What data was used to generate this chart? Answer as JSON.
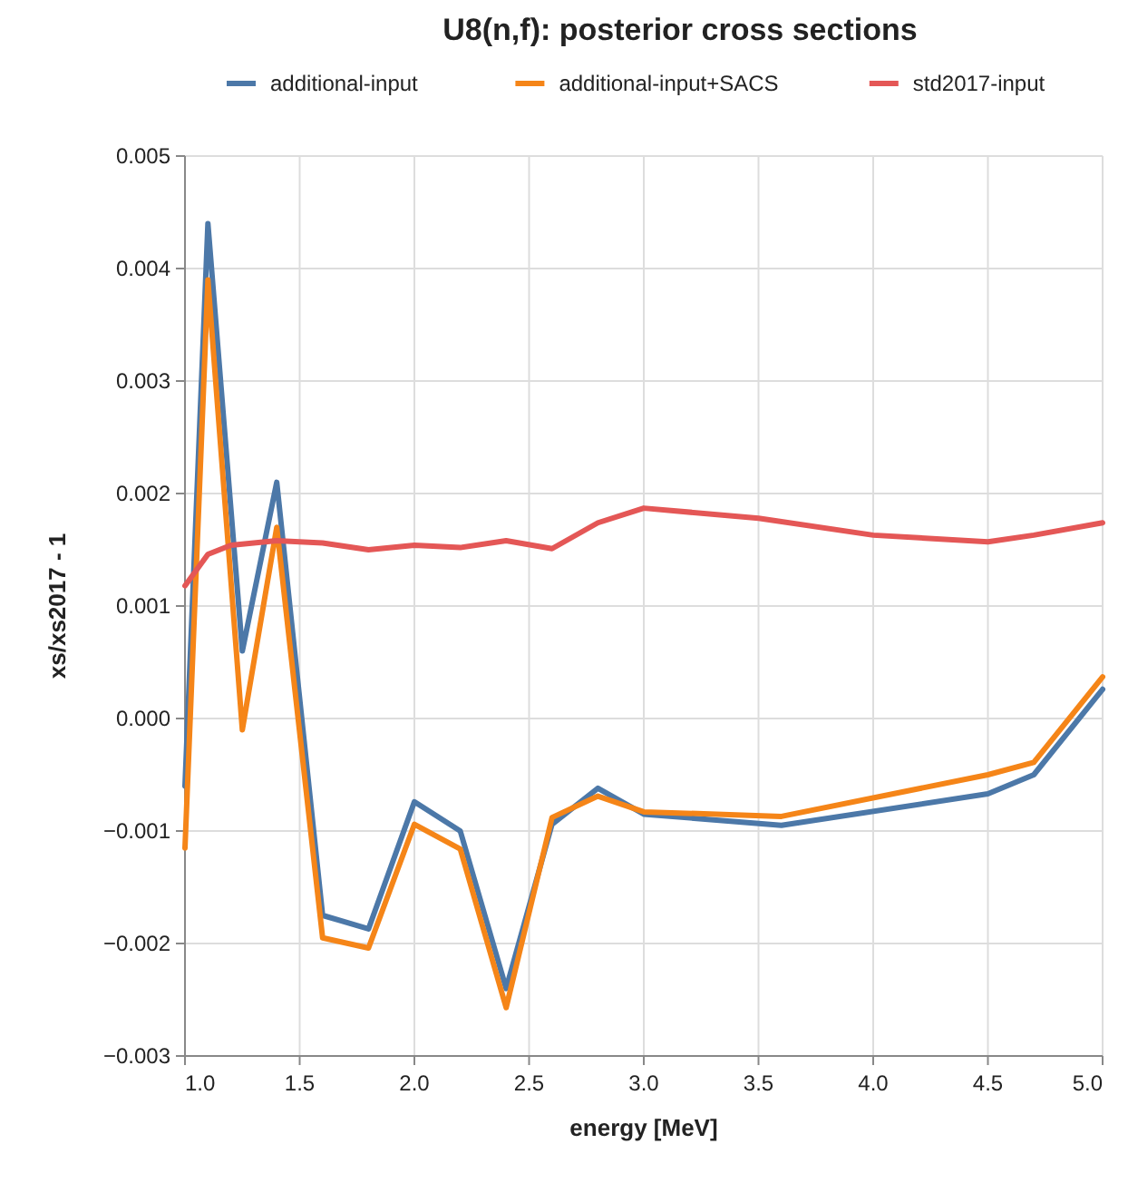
{
  "chart_data": {
    "type": "line",
    "title": "U8(n,f): posterior cross sections",
    "xlabel": "energy [MeV]",
    "ylabel": "xs/xs2017 - 1",
    "xlim": [
      1,
      5
    ],
    "ylim": [
      -0.003,
      0.005
    ],
    "xticks": [
      {
        "value": 1,
        "label": "1.0"
      },
      {
        "value": 1.5,
        "label": "1.5"
      },
      {
        "value": 2,
        "label": "2.0"
      },
      {
        "value": 2.5,
        "label": "2.5"
      },
      {
        "value": 3,
        "label": "3.0"
      },
      {
        "value": 3.5,
        "label": "3.5"
      },
      {
        "value": 4,
        "label": "4.0"
      },
      {
        "value": 4.5,
        "label": "4.5"
      },
      {
        "value": 5,
        "label": "5.0"
      }
    ],
    "yticks": [
      {
        "value": -0.003,
        "label": "−0.003"
      },
      {
        "value": -0.002,
        "label": "−0.002"
      },
      {
        "value": -0.001,
        "label": "−0.001"
      },
      {
        "value": 0,
        "label": "0.000"
      },
      {
        "value": 0.001,
        "label": "0.001"
      },
      {
        "value": 0.002,
        "label": "0.002"
      },
      {
        "value": 0.003,
        "label": "0.003"
      },
      {
        "value": 0.004,
        "label": "0.004"
      },
      {
        "value": 0.005,
        "label": "0.005"
      }
    ],
    "grid": true,
    "legend": "top",
    "line_style": "solid",
    "marker": "none",
    "series": [
      {
        "name": "additional-input",
        "color": "#4c78a8",
        "x": [
          1.0,
          1.1,
          1.25,
          1.4,
          1.6,
          1.8,
          2.0,
          2.2,
          2.4,
          2.6,
          2.8,
          3.0,
          3.6,
          4.5,
          4.7,
          5.0
        ],
        "values": [
          -0.0006,
          0.0044,
          0.0006,
          0.0021,
          -0.00175,
          -0.00187,
          -0.00074,
          -0.001,
          -0.0024,
          -0.00094,
          -0.00062,
          -0.00085,
          -0.00095,
          -0.00067,
          -0.0005,
          0.00026
        ]
      },
      {
        "name": "additional-input+SACS",
        "color": "#f58518",
        "x": [
          1.0,
          1.1,
          1.25,
          1.4,
          1.6,
          1.8,
          2.0,
          2.2,
          2.4,
          2.6,
          2.8,
          3.0,
          3.6,
          4.5,
          4.7,
          5.0
        ],
        "values": [
          -0.00115,
          0.0039,
          -0.0001,
          0.0017,
          -0.00195,
          -0.00204,
          -0.00094,
          -0.00116,
          -0.00257,
          -0.00088,
          -0.00069,
          -0.00083,
          -0.00087,
          -0.0005,
          -0.00039,
          0.00037
        ]
      },
      {
        "name": "std2017-input",
        "color": "#e45756",
        "x": [
          1.0,
          1.1,
          1.2,
          1.4,
          1.6,
          1.8,
          2.0,
          2.2,
          2.4,
          2.6,
          2.8,
          3.0,
          3.5,
          4.0,
          4.5,
          4.7,
          5.0
        ],
        "values": [
          0.00118,
          0.00146,
          0.00154,
          0.00158,
          0.00156,
          0.0015,
          0.00154,
          0.00152,
          0.00158,
          0.00151,
          0.00174,
          0.00187,
          0.00178,
          0.00163,
          0.00157,
          0.00163,
          0.00174
        ]
      }
    ]
  }
}
